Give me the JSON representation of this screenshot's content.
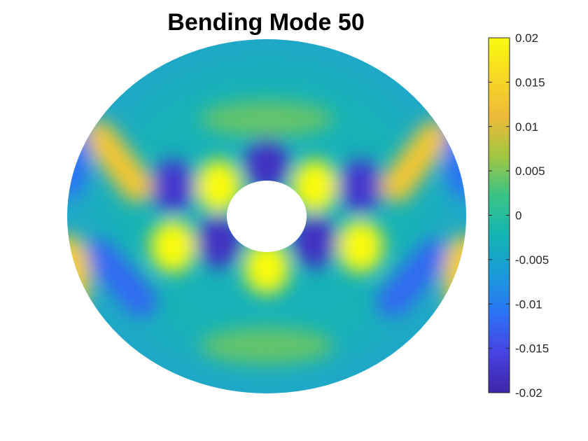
{
  "figure": {
    "title": "Bending Mode 50"
  },
  "chart_data": {
    "type": "heatmap",
    "title": "Bending Mode 50",
    "domain": "annulus",
    "aspect": "axis equal, axes hidden",
    "colormap": "parula",
    "colormap_stops": [
      "#3e26a8",
      "#4742e1",
      "#2c73f6",
      "#1a9bd9",
      "#14b4b2",
      "#39c386",
      "#a1c640",
      "#eeb93a",
      "#f7d824",
      "#f9fb0e"
    ],
    "clim": [
      -0.02,
      0.02
    ],
    "colorbar": {
      "placement": "right",
      "ticks": [
        0.02,
        0.015,
        0.01,
        0.005,
        0,
        -0.005,
        -0.01,
        -0.015,
        -0.02
      ],
      "tick_labels": [
        "0.02",
        "0.015",
        "0.01",
        "0.005",
        "0",
        "-0.005",
        "-0.01",
        "-0.015",
        "-0.02"
      ]
    },
    "features": [
      {
        "kind": "peak",
        "value": 0.02,
        "x": -0.24,
        "y": 0.17
      },
      {
        "kind": "peak",
        "value": 0.02,
        "x": 0.24,
        "y": 0.17
      },
      {
        "kind": "peak",
        "value": 0.02,
        "x": -0.47,
        "y": -0.17
      },
      {
        "kind": "peak",
        "value": 0.02,
        "x": 0.47,
        "y": -0.17
      },
      {
        "kind": "peak",
        "value": 0.02,
        "x": 0.0,
        "y": -0.29
      },
      {
        "kind": "trough",
        "value": -0.018,
        "x": 0.0,
        "y": 0.29
      },
      {
        "kind": "trough",
        "value": -0.017,
        "x": -0.47,
        "y": 0.17
      },
      {
        "kind": "trough",
        "value": -0.017,
        "x": 0.47,
        "y": 0.17
      },
      {
        "kind": "trough",
        "value": -0.018,
        "x": -0.24,
        "y": -0.14
      },
      {
        "kind": "trough",
        "value": -0.018,
        "x": 0.24,
        "y": -0.14
      },
      {
        "kind": "ridge",
        "value": 0.013,
        "x1": -0.84,
        "y1": 0.45,
        "x2": -0.65,
        "y2": 0.17
      },
      {
        "kind": "ridge",
        "value": 0.013,
        "x1": 0.84,
        "y1": 0.45,
        "x2": 0.65,
        "y2": 0.17
      },
      {
        "kind": "ridge",
        "value": -0.012,
        "x1": -0.84,
        "y1": -0.22,
        "x2": -0.63,
        "y2": -0.48
      },
      {
        "kind": "ridge",
        "value": -0.012,
        "x1": 0.84,
        "y1": -0.22,
        "x2": 0.63,
        "y2": -0.48
      },
      {
        "kind": "peak",
        "value": 0.014,
        "x": -0.99,
        "y": -0.34
      },
      {
        "kind": "peak",
        "value": 0.014,
        "x": 0.99,
        "y": -0.34
      },
      {
        "kind": "trough",
        "value": -0.011,
        "x": -0.99,
        "y": 0.34
      },
      {
        "kind": "trough",
        "value": -0.011,
        "x": 0.99,
        "y": 0.34
      },
      {
        "kind": "band",
        "value": 0.004,
        "x": 0.0,
        "y": 0.55
      },
      {
        "kind": "band",
        "value": 0.004,
        "x": 0.0,
        "y": -0.73
      }
    ]
  }
}
